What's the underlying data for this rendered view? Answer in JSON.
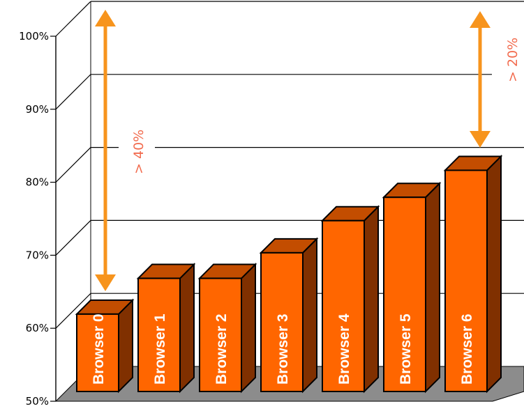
{
  "chart_data": {
    "type": "bar",
    "three_d": true,
    "categories": [
      "Browser 0",
      "Browser 1",
      "Browser 2",
      "Browser 3",
      "Browser 4",
      "Browser 5",
      "Browser 6"
    ],
    "values": [
      60.6,
      65.5,
      65.5,
      69,
      73.4,
      76.6,
      80.3
    ],
    "y_ticks": [
      "50%",
      "60%",
      "70%",
      "80%",
      "90%",
      "100%"
    ],
    "ylim": [
      50,
      100
    ],
    "grid": true,
    "annotations": [
      {
        "text": "> 40%",
        "spans": "left"
      },
      {
        "text": "> 20%",
        "spans": "right"
      }
    ],
    "colors": {
      "bar_front": "#ff6600",
      "bar_top": "#c34d00",
      "bar_side": "#803000",
      "floor": "#8c8c8c",
      "arrow": "#f7941d",
      "annotation_text": "#f26c4f"
    }
  }
}
